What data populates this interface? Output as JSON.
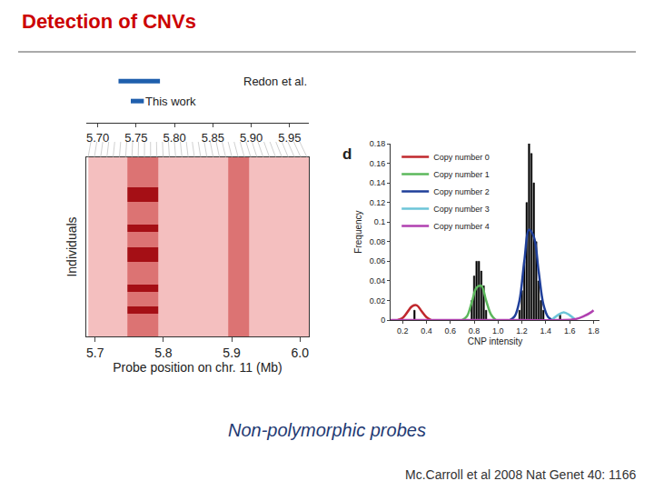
{
  "title": "Detection of CNVs",
  "caption": "Non-polymorphic probes",
  "citation": "Mc.Carroll et al 2008 Nat Genet 40: 1166",
  "chart_data": [
    {
      "type": "regions",
      "color": "#1f5fad",
      "xlim": [
        5.685,
        5.975
      ],
      "xticks": [
        {
          "value": 5.7,
          "label": "5.70"
        },
        5.75,
        {
          "value": 5.8,
          "label": "5.80"
        },
        5.85,
        {
          "value": 5.9,
          "label": "5.90"
        },
        5.95
      ],
      "tick_labels": "x",
      "regions": [
        {
          "label": "Redon et al.",
          "start": 5.727,
          "end": 5.781
        },
        {
          "label": "This work",
          "start": 5.743,
          "end": 5.76
        }
      ]
    },
    {
      "type": "heatmap",
      "x_label": "Probe position on chr. 11 (Mb)",
      "y_label": "Individuals",
      "xlim": [
        5.687,
        6.013
      ],
      "xticks": [
        5.7,
        5.8,
        5.9,
        {
          "value": 6,
          "label": "6.0"
        }
      ],
      "tick_labels": "x",
      "zlim": [
        0,
        3
      ],
      "x": [
        5.7,
        5.72,
        5.74,
        5.755,
        5.765,
        5.775,
        5.785,
        5.8,
        5.82,
        5.85,
        5.88,
        5.91,
        5.94,
        5.97,
        6.0
      ],
      "cells": [
        [
          1,
          1,
          1,
          2,
          2,
          2,
          2,
          1,
          1,
          1,
          1,
          2,
          1,
          1,
          1
        ],
        [
          1,
          1,
          1,
          2,
          2,
          2,
          2,
          1,
          1,
          1,
          1,
          2,
          1,
          1,
          1
        ],
        [
          1,
          1,
          1,
          2,
          2,
          2,
          2,
          1,
          1,
          1,
          1,
          2,
          1,
          1,
          1
        ],
        [
          1,
          1,
          1,
          2,
          2,
          2,
          2,
          1,
          1,
          1,
          1,
          2,
          1,
          1,
          1
        ],
        [
          1,
          1,
          1,
          3,
          3,
          3,
          3,
          1,
          1,
          1,
          1,
          2,
          1,
          1,
          1
        ],
        [
          1,
          1,
          1,
          3,
          3,
          3,
          3,
          1,
          1,
          1,
          1,
          2,
          1,
          1,
          1
        ],
        [
          1,
          1,
          1,
          2,
          2,
          2,
          2,
          1,
          1,
          1,
          1,
          2,
          1,
          1,
          1
        ],
        [
          1,
          1,
          1,
          2,
          2,
          2,
          2,
          1,
          1,
          1,
          1,
          2,
          1,
          1,
          1
        ],
        [
          1,
          1,
          1,
          2,
          2,
          2,
          2,
          1,
          1,
          1,
          1,
          2,
          1,
          1,
          1
        ],
        [
          1,
          1,
          1,
          3,
          3,
          3,
          3,
          1,
          1,
          1,
          1,
          2,
          1,
          1,
          1
        ],
        [
          1,
          1,
          1,
          2,
          2,
          2,
          2,
          1,
          1,
          1,
          1,
          2,
          1,
          1,
          1
        ],
        [
          1,
          1,
          1,
          2,
          2,
          2,
          2,
          1,
          1,
          1,
          1,
          2,
          1,
          1,
          1
        ],
        [
          1,
          1,
          1,
          3,
          3,
          3,
          3,
          1,
          1,
          1,
          1,
          2,
          1,
          1,
          1
        ],
        [
          1,
          1,
          1,
          3,
          3,
          3,
          3,
          1,
          1,
          1,
          1,
          2,
          1,
          1,
          1
        ],
        [
          1,
          1,
          1,
          2,
          2,
          2,
          2,
          1,
          1,
          1,
          1,
          2,
          1,
          1,
          1
        ],
        [
          1,
          1,
          1,
          2,
          2,
          2,
          2,
          1,
          1,
          1,
          1,
          2,
          1,
          1,
          1
        ],
        [
          1,
          1,
          1,
          2,
          2,
          2,
          2,
          1,
          1,
          1,
          1,
          2,
          1,
          1,
          1
        ],
        [
          1,
          1,
          1,
          3,
          3,
          3,
          3,
          1,
          1,
          1,
          1,
          2,
          1,
          1,
          1
        ],
        [
          1,
          1,
          1,
          2,
          2,
          2,
          2,
          1,
          1,
          1,
          1,
          2,
          1,
          1,
          1
        ],
        [
          1,
          1,
          1,
          2,
          2,
          2,
          2,
          1,
          1,
          1,
          1,
          2,
          1,
          1,
          1
        ],
        [
          1,
          1,
          1,
          3,
          3,
          3,
          3,
          1,
          1,
          1,
          1,
          2,
          1,
          1,
          1
        ],
        [
          1,
          1,
          1,
          2,
          2,
          2,
          2,
          1,
          1,
          1,
          1,
          2,
          1,
          1,
          1
        ],
        [
          1,
          1,
          1,
          2,
          2,
          2,
          2,
          1,
          1,
          1,
          1,
          2,
          1,
          1,
          1
        ],
        [
          1,
          1,
          1,
          2,
          2,
          2,
          2,
          1,
          1,
          1,
          1,
          2,
          1,
          1,
          1
        ]
      ]
    },
    {
      "type": "line",
      "panel_label": "d",
      "x_label": "CNP intensity",
      "y_label": "Frequency",
      "xlim": [
        0.1,
        1.85
      ],
      "xticks": [
        0.2,
        0.4,
        0.6,
        0.8,
        {
          "value": 1,
          "label": "1.0"
        },
        1.2,
        1.4,
        1.6,
        1.8
      ],
      "ylim": [
        0,
        0.18
      ],
      "yticks": [
        0,
        0.02,
        0.04,
        0.06,
        0.08,
        0.1,
        0.12,
        0.14,
        0.16,
        0.18
      ],
      "legend": "top-left",
      "series": [
        {
          "type": "bar",
          "color": "#000000",
          "x": [
            0.3,
            0.78,
            0.8,
            0.82,
            0.84,
            0.86,
            0.88,
            0.9,
            1.18,
            1.2,
            1.22,
            1.24,
            1.26,
            1.28,
            1.3,
            1.32,
            1.34,
            1.36,
            1.38,
            1.52
          ],
          "values": [
            0.01,
            0.02,
            0.045,
            0.06,
            0.06,
            0.05,
            0.035,
            0.01,
            0.01,
            0.03,
            0.06,
            0.12,
            0.18,
            0.17,
            0.14,
            0.08,
            0.04,
            0.02,
            0.01,
            0.005
          ]
        },
        {
          "name": "Copy number 0",
          "type": "line",
          "color": "#c0282d",
          "x": [
            0.16,
            0.2,
            0.24,
            0.28,
            0.32,
            0.36,
            0.4,
            0.44
          ],
          "values": [
            0,
            0.002,
            0.008,
            0.014,
            0.015,
            0.009,
            0.003,
            0
          ]
        },
        {
          "name": "Copy number 1",
          "type": "line",
          "color": "#5cb85c",
          "x": [
            0.7,
            0.74,
            0.78,
            0.82,
            0.86,
            0.9,
            0.94,
            0.98
          ],
          "values": [
            0,
            0.004,
            0.018,
            0.033,
            0.035,
            0.02,
            0.006,
            0
          ]
        },
        {
          "name": "Copy number 2",
          "type": "line",
          "color": "#1f3f99",
          "x": [
            1.1,
            1.14,
            1.18,
            1.22,
            1.26,
            1.3,
            1.34,
            1.38,
            1.42,
            1.46
          ],
          "values": [
            0,
            0.004,
            0.02,
            0.06,
            0.092,
            0.085,
            0.05,
            0.016,
            0.003,
            0
          ]
        },
        {
          "name": "Copy number 3",
          "type": "line",
          "color": "#6cc5d8",
          "x": [
            1.45,
            1.5,
            1.55,
            1.6,
            1.65
          ],
          "values": [
            0,
            0.005,
            0.008,
            0.005,
            0
          ]
        },
        {
          "name": "Copy number 4",
          "type": "line",
          "color": "#b040b0",
          "x": [
            0.1,
            0.5,
            1,
            1.5,
            1.65,
            1.72,
            1.78,
            1.8
          ],
          "values": [
            0,
            0,
            0,
            0,
            0.001,
            0.004,
            0.008,
            0.01
          ]
        }
      ]
    }
  ]
}
